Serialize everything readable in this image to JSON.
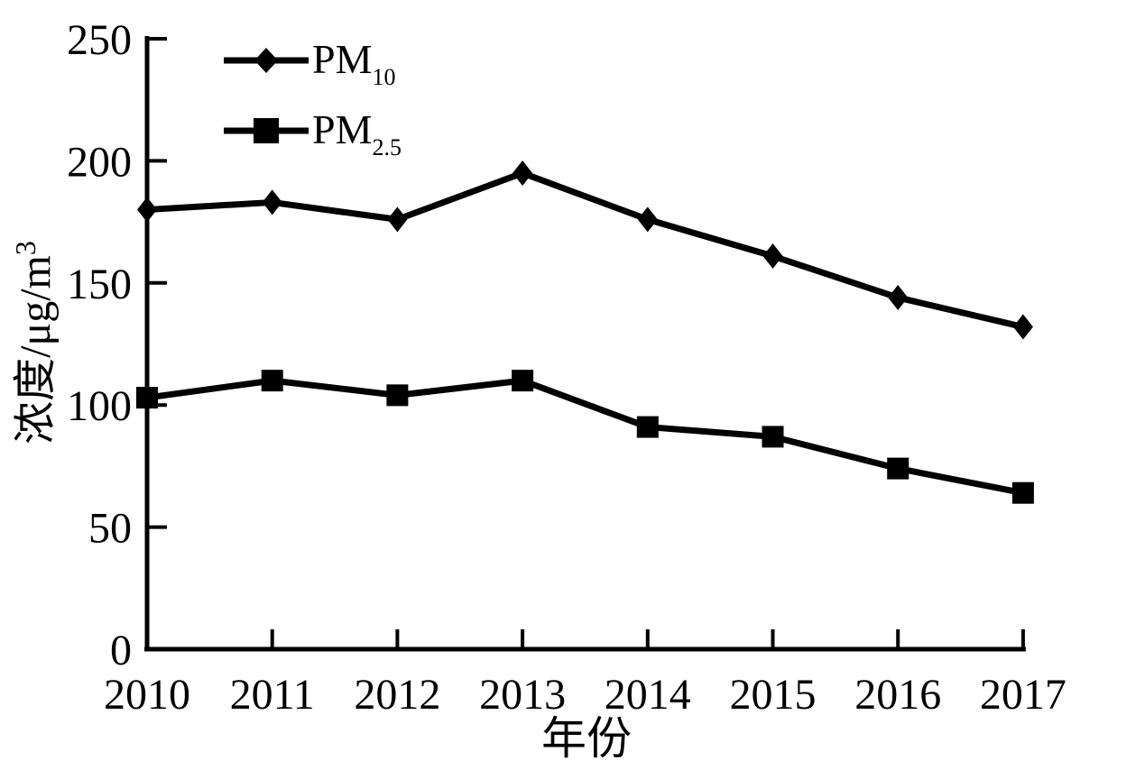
{
  "chart_data": {
    "type": "line",
    "title": "",
    "x_axis": {
      "label": "年份",
      "categories": [
        "2010",
        "2011",
        "2012",
        "2013",
        "2014",
        "2015",
        "2016",
        "2017"
      ]
    },
    "y_axis": {
      "label_prefix": "浓度/μg/m",
      "label_superscript": "3",
      "ticks": [
        0,
        50,
        100,
        150,
        200,
        250
      ],
      "ylim": [
        0,
        250
      ]
    },
    "series": [
      {
        "name": "PM10",
        "label_main": "PM",
        "label_sub": "10",
        "marker": "diamond",
        "values": [
          180,
          183,
          176,
          195,
          176,
          161,
          144,
          132
        ]
      },
      {
        "name": "PM2.5",
        "label_main": "PM",
        "label_sub": "2.5",
        "marker": "square",
        "values": [
          103,
          110,
          104,
          110,
          91,
          87,
          74,
          64
        ]
      }
    ],
    "legend_position": "top-left-inside",
    "grid": false,
    "colors": {
      "line": "#000000",
      "marker": "#000000",
      "text": "#000000",
      "background": "#ffffff"
    }
  }
}
